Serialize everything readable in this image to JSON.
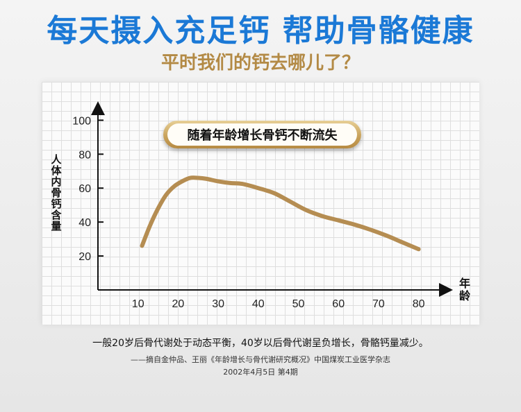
{
  "header": {
    "title": "每天摄入充足钙 帮助骨骼健康",
    "subtitle": "平时我们的钙去哪儿了？"
  },
  "colors": {
    "title": "#1b79d6",
    "subtitle": "#b38a45",
    "curve": "#b58d52",
    "axis": "#111111"
  },
  "chart_data": {
    "type": "line",
    "ylabel": "人体内骨钙含量",
    "xlabel": "年龄",
    "annotation": "随着年龄增长骨钙不断流失",
    "xlim": [
      0,
      85
    ],
    "ylim": [
      0,
      112
    ],
    "x_ticks": [
      10,
      20,
      30,
      40,
      50,
      60,
      70,
      80
    ],
    "y_ticks": [
      20,
      40,
      60,
      80,
      100
    ],
    "series": [
      {
        "x": [
          11,
          13,
          15,
          17,
          19,
          21,
          23,
          25,
          27,
          30,
          33,
          36,
          40,
          44,
          48,
          52,
          56,
          60,
          64,
          68,
          72,
          76,
          80
        ],
        "values": [
          26,
          38,
          48,
          56,
          61,
          64,
          66,
          66,
          65.5,
          64,
          63,
          62.5,
          60,
          57,
          52,
          47,
          43.5,
          41,
          38.5,
          35.5,
          32,
          28,
          24
        ]
      }
    ],
    "grid": true
  },
  "footer": {
    "summary": "一般20岁后骨代谢处于动态平衡，40岁以后骨代谢呈负增长，骨骼钙量减少。",
    "citation": "——摘自金仲品、王丽《年龄增长与骨代谢研究概况》中国煤炭工业医学杂志",
    "citation_date": "2002年4月5日 第4期"
  }
}
